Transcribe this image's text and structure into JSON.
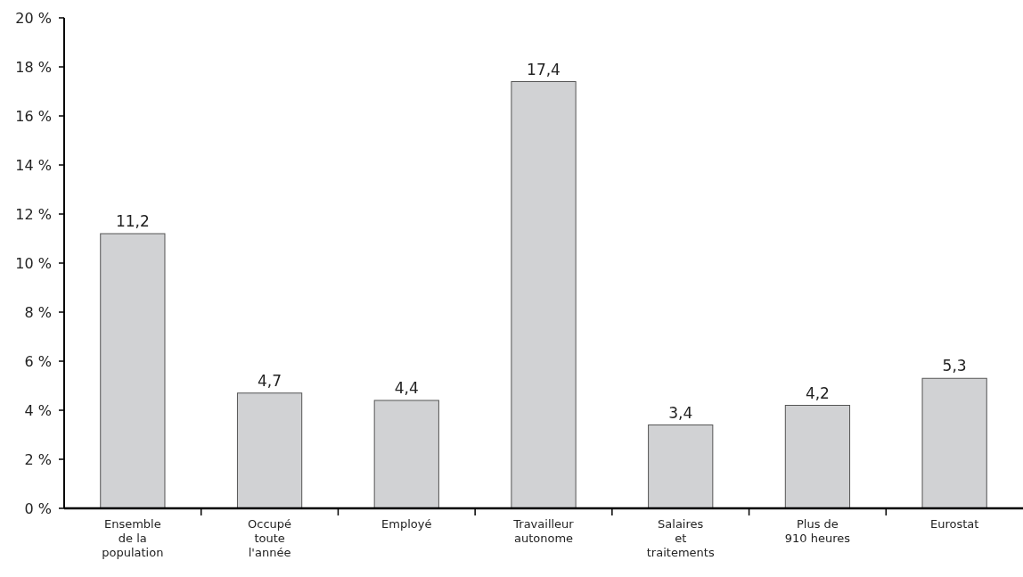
{
  "chart_data": {
    "type": "bar",
    "categories": [
      "Ensemble\nde la\npopulation",
      "Occupé\ntoute\nl'année",
      "Employé",
      "Travailleur\nautonome",
      "Salaires\net\ntraitements",
      "Plus de\n910 heures",
      "Eurostat"
    ],
    "values": [
      11.2,
      4.7,
      4.4,
      17.4,
      3.4,
      4.2,
      5.3
    ],
    "value_labels": [
      "11,2",
      "4,7",
      "4,4",
      "17,4",
      "3,4",
      "4,2",
      "5,3"
    ],
    "color": "#d1d2d4",
    "ylim": [
      0,
      20
    ],
    "yticks": [
      {
        "value": 0,
        "label": "0 %"
      },
      {
        "value": 2,
        "label": "2 %"
      },
      {
        "value": 4,
        "label": "4 %"
      },
      {
        "value": 6,
        "label": "6 %"
      },
      {
        "value": 8,
        "label": "8 %"
      },
      {
        "value": 10,
        "label": "10 %"
      },
      {
        "value": 12,
        "label": "12 %"
      },
      {
        "value": 14,
        "label": "14 %"
      },
      {
        "value": 16,
        "label": "16 %"
      },
      {
        "value": 18,
        "label": "18 %"
      },
      {
        "value": 20,
        "label": "20 %"
      }
    ],
    "grid": false
  }
}
